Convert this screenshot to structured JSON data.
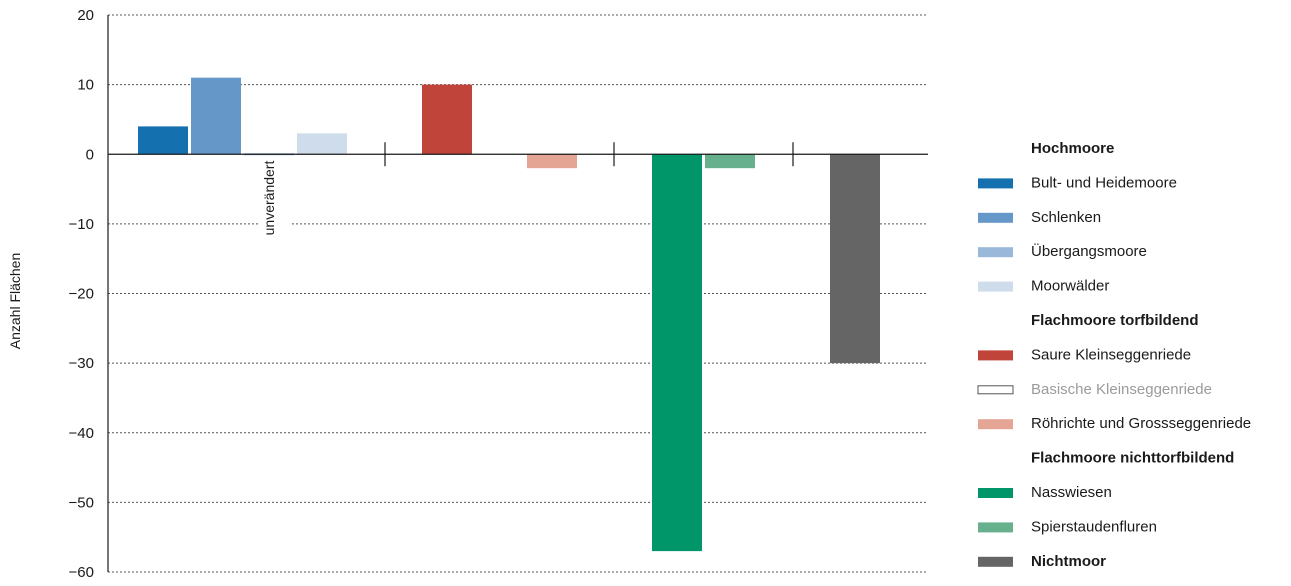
{
  "chart_data": {
    "type": "bar",
    "ylabel": "Anzahl Flächen",
    "ylim": [
      -60,
      20
    ],
    "yticks": [
      20,
      10,
      0,
      -10,
      -20,
      -30,
      -40,
      -50,
      -60
    ],
    "ytick_labels": [
      "20",
      "10",
      "0",
      "−10",
      "−20",
      "−30",
      "−40",
      "−50",
      "−60"
    ],
    "grid": true,
    "legend_position": "right",
    "annotation": "unverändert",
    "series": [
      {
        "name": "Bult- und Heidemoore",
        "group": "Hochmoore",
        "value": 4,
        "color": "#1570b0"
      },
      {
        "name": "Schlenken",
        "group": "Hochmoore",
        "value": 11,
        "color": "#6598c8"
      },
      {
        "name": "Übergangsmoore",
        "group": "Hochmoore",
        "value": 0,
        "color": "#9ab8da"
      },
      {
        "name": "Moorwälder",
        "group": "Hochmoore",
        "value": 3,
        "color": "#cfdcec"
      },
      {
        "name": "Saure Kleinseggenriede",
        "group": "Flachmoore torfbildend",
        "value": 10,
        "color": "#c0443a"
      },
      {
        "name": "Basische Kleinseggenriede",
        "group": "Flachmoore torfbildend",
        "value": 0,
        "color": "#ffffff",
        "muted": true
      },
      {
        "name": "Röhrichte und Grossseggenriede",
        "group": "Flachmoore torfbildend",
        "value": -2,
        "color": "#e4a595"
      },
      {
        "name": "Nasswiesen",
        "group": "Flachmoore nichttorfbildend",
        "value": -57,
        "color": "#00966a"
      },
      {
        "name": "Spierstaudenfluren",
        "group": "Flachmoore nichttorfbildend",
        "value": -2,
        "color": "#66b08e"
      },
      {
        "name": "Nichtmoor",
        "group": "Nichtmoor",
        "value": -30,
        "color": "#656565"
      }
    ],
    "legend": [
      {
        "kind": "header",
        "text": "Hochmoore"
      },
      {
        "kind": "item",
        "text": "Bult- und Heidemoore",
        "color": "#1570b0"
      },
      {
        "kind": "item",
        "text": "Schlenken",
        "color": "#6598c8"
      },
      {
        "kind": "item",
        "text": "Übergangsmoore",
        "color": "#9ab8da"
      },
      {
        "kind": "item",
        "text": "Moorwälder",
        "color": "#cfdcec"
      },
      {
        "kind": "header",
        "text": "Flachmoore torfbildend"
      },
      {
        "kind": "item",
        "text": "Saure Kleinseggenriede",
        "color": "#c0443a"
      },
      {
        "kind": "item",
        "text": "Basische Kleinseggenriede",
        "color": "#ffffff",
        "muted": true
      },
      {
        "kind": "item",
        "text": "Röhrichte und Grossseggenriede",
        "color": "#e4a595"
      },
      {
        "kind": "header",
        "text": "Flachmoore nichttorfbildend"
      },
      {
        "kind": "item",
        "text": "Nasswiesen",
        "color": "#00966a"
      },
      {
        "kind": "item",
        "text": "Spierstaudenfluren",
        "color": "#66b08e"
      },
      {
        "kind": "header-item",
        "text": "Nichtmoor",
        "color": "#656565"
      }
    ]
  }
}
